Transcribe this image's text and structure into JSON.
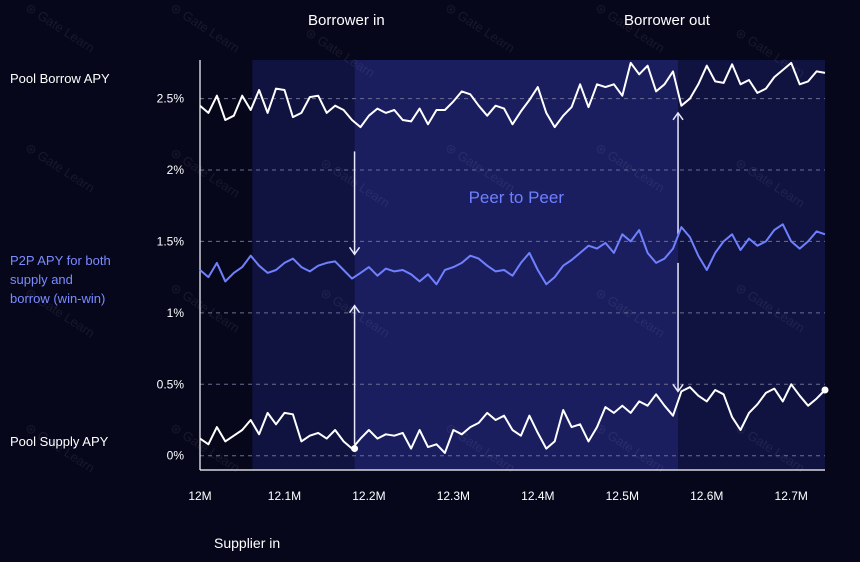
{
  "chart_data": {
    "type": "line",
    "title": "",
    "xlabel": "Supplier in",
    "ylabel": "",
    "x_ticks": [
      "12M",
      "12.1M",
      "12.2M",
      "12.3M",
      "12.4M",
      "12.5M",
      "12.6M",
      "12.7M"
    ],
    "y_ticks": [
      "0%",
      "0.5%",
      "1%",
      "1.5%",
      "2%",
      "2.5%"
    ],
    "xlim": [
      12.0,
      12.74
    ],
    "ylim": [
      -0.1,
      2.77
    ],
    "grid": "horizontal-dashed",
    "series_labels": {
      "borrow": "Pool Borrow APY",
      "p2p": "P2P APY for both\nsupply and\nborrow (win-win)",
      "supply": "Pool Supply APY"
    },
    "annotations": {
      "borrower_in": "Borrower in",
      "borrower_out": "Borrower out",
      "peer_to_peer": "Peer to Peer"
    },
    "bands": [
      {
        "x0": 12.062,
        "x1": 12.183,
        "shade": "light"
      },
      {
        "x0": 12.183,
        "x1": 12.566,
        "shade": "peer-to-peer"
      },
      {
        "x0": 12.566,
        "x1": 12.74,
        "shade": "light"
      }
    ],
    "events": [
      {
        "x": 12.183,
        "label": "Borrower in"
      },
      {
        "x": 12.566,
        "label": "Borrower out"
      }
    ],
    "series": [
      {
        "key": "borrow",
        "color": "#ffffff",
        "x": [
          12.0,
          12.01,
          12.02,
          12.03,
          12.04,
          12.05,
          12.06,
          12.07,
          12.08,
          12.09,
          12.1,
          12.11,
          12.12,
          12.13,
          12.14,
          12.15,
          12.16,
          12.17,
          12.18,
          12.19,
          12.2,
          12.21,
          12.22,
          12.23,
          12.24,
          12.25,
          12.26,
          12.27,
          12.28,
          12.29,
          12.3,
          12.31,
          12.32,
          12.33,
          12.34,
          12.35,
          12.36,
          12.37,
          12.38,
          12.39,
          12.4,
          12.41,
          12.42,
          12.43,
          12.44,
          12.45,
          12.46,
          12.47,
          12.48,
          12.49,
          12.5,
          12.51,
          12.52,
          12.53,
          12.54,
          12.55,
          12.56,
          12.57,
          12.58,
          12.59,
          12.6,
          12.61,
          12.62,
          12.63,
          12.64,
          12.65,
          12.66,
          12.67,
          12.68,
          12.69,
          12.7,
          12.71,
          12.72,
          12.73,
          12.74
        ],
        "values": [
          2.45,
          2.4,
          2.52,
          2.35,
          2.38,
          2.52,
          2.42,
          2.56,
          2.4,
          2.57,
          2.56,
          2.37,
          2.4,
          2.51,
          2.52,
          2.4,
          2.45,
          2.42,
          2.35,
          2.3,
          2.38,
          2.43,
          2.4,
          2.42,
          2.35,
          2.34,
          2.43,
          2.32,
          2.42,
          2.42,
          2.48,
          2.55,
          2.53,
          2.45,
          2.38,
          2.45,
          2.43,
          2.32,
          2.41,
          2.49,
          2.58,
          2.4,
          2.3,
          2.38,
          2.44,
          2.6,
          2.44,
          2.6,
          2.58,
          2.6,
          2.52,
          2.75,
          2.67,
          2.73,
          2.55,
          2.6,
          2.69,
          2.45,
          2.5,
          2.6,
          2.73,
          2.62,
          2.61,
          2.74,
          2.6,
          2.63,
          2.54,
          2.57,
          2.65,
          2.7,
          2.75,
          2.6,
          2.62,
          2.69,
          2.68
        ],
        "points": []
      },
      {
        "key": "p2p",
        "color": "#6f80ff",
        "x": [
          12.0,
          12.01,
          12.02,
          12.03,
          12.04,
          12.05,
          12.06,
          12.07,
          12.08,
          12.09,
          12.1,
          12.11,
          12.12,
          12.13,
          12.14,
          12.15,
          12.16,
          12.17,
          12.18,
          12.19,
          12.2,
          12.21,
          12.22,
          12.23,
          12.24,
          12.25,
          12.26,
          12.27,
          12.28,
          12.29,
          12.3,
          12.31,
          12.32,
          12.33,
          12.34,
          12.35,
          12.36,
          12.37,
          12.38,
          12.39,
          12.4,
          12.41,
          12.42,
          12.43,
          12.44,
          12.45,
          12.46,
          12.47,
          12.48,
          12.49,
          12.5,
          12.51,
          12.52,
          12.53,
          12.54,
          12.55,
          12.56,
          12.57,
          12.58,
          12.59,
          12.6,
          12.61,
          12.62,
          12.63,
          12.64,
          12.65,
          12.66,
          12.67,
          12.68,
          12.69,
          12.7,
          12.71,
          12.72,
          12.73,
          12.74
        ],
        "values": [
          1.3,
          1.25,
          1.35,
          1.22,
          1.28,
          1.32,
          1.4,
          1.33,
          1.28,
          1.3,
          1.35,
          1.38,
          1.32,
          1.29,
          1.33,
          1.35,
          1.36,
          1.3,
          1.24,
          1.28,
          1.32,
          1.26,
          1.31,
          1.29,
          1.3,
          1.27,
          1.22,
          1.27,
          1.2,
          1.3,
          1.32,
          1.35,
          1.4,
          1.38,
          1.33,
          1.29,
          1.3,
          1.26,
          1.35,
          1.42,
          1.3,
          1.2,
          1.25,
          1.33,
          1.37,
          1.42,
          1.47,
          1.45,
          1.49,
          1.42,
          1.55,
          1.5,
          1.58,
          1.42,
          1.35,
          1.38,
          1.45,
          1.6,
          1.53,
          1.4,
          1.3,
          1.42,
          1.5,
          1.55,
          1.44,
          1.52,
          1.47,
          1.5,
          1.58,
          1.62,
          1.5,
          1.45,
          1.5,
          1.57,
          1.55
        ],
        "points": []
      },
      {
        "key": "supply",
        "color": "#ffffff",
        "x": [
          12.0,
          12.01,
          12.02,
          12.03,
          12.04,
          12.05,
          12.06,
          12.07,
          12.08,
          12.09,
          12.1,
          12.11,
          12.12,
          12.13,
          12.14,
          12.15,
          12.16,
          12.17,
          12.18,
          12.19,
          12.2,
          12.21,
          12.22,
          12.23,
          12.24,
          12.25,
          12.26,
          12.27,
          12.28,
          12.29,
          12.3,
          12.31,
          12.32,
          12.33,
          12.34,
          12.35,
          12.36,
          12.37,
          12.38,
          12.39,
          12.4,
          12.41,
          12.42,
          12.43,
          12.44,
          12.45,
          12.46,
          12.47,
          12.48,
          12.49,
          12.5,
          12.51,
          12.52,
          12.53,
          12.54,
          12.55,
          12.56,
          12.57,
          12.58,
          12.59,
          12.6,
          12.61,
          12.62,
          12.63,
          12.64,
          12.65,
          12.66,
          12.67,
          12.68,
          12.69,
          12.7,
          12.71,
          12.72,
          12.73,
          12.74
        ],
        "values": [
          0.12,
          0.08,
          0.2,
          0.1,
          0.14,
          0.18,
          0.25,
          0.15,
          0.3,
          0.22,
          0.3,
          0.29,
          0.1,
          0.14,
          0.16,
          0.12,
          0.18,
          0.1,
          0.05,
          0.12,
          0.18,
          0.12,
          0.15,
          0.14,
          0.16,
          0.05,
          0.18,
          0.06,
          0.08,
          0.02,
          0.18,
          0.15,
          0.2,
          0.23,
          0.3,
          0.25,
          0.28,
          0.18,
          0.14,
          0.28,
          0.16,
          0.05,
          0.1,
          0.32,
          0.2,
          0.22,
          0.1,
          0.2,
          0.34,
          0.3,
          0.35,
          0.3,
          0.38,
          0.35,
          0.43,
          0.35,
          0.28,
          0.45,
          0.48,
          0.42,
          0.38,
          0.46,
          0.43,
          0.27,
          0.18,
          0.3,
          0.36,
          0.44,
          0.47,
          0.38,
          0.5,
          0.42,
          0.35,
          0.4,
          0.46
        ],
        "points": [
          [
            12.183,
            0.05
          ],
          [
            12.74,
            0.46
          ]
        ]
      }
    ]
  }
}
